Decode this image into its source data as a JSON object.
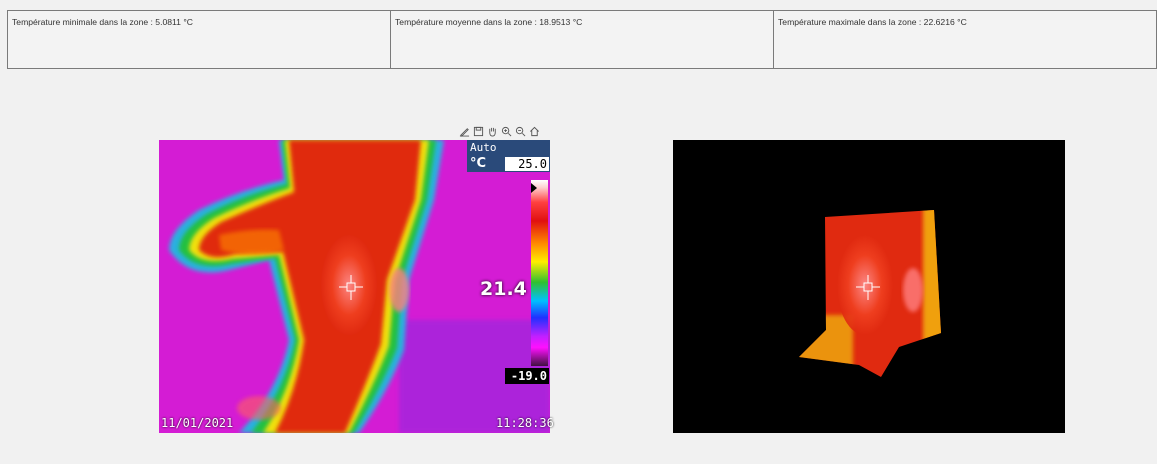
{
  "stats": {
    "min_label": "Température minimale dans la zone : 5.0811 °C",
    "mean_label": "Température moyenne dans la zone : 18.9513 °C",
    "max_label": "Température maximale dans la zone : 22.6216 °C"
  },
  "toolbar": {
    "items": [
      "annotate-icon",
      "save-icon",
      "pan-hand-icon",
      "zoom-in-icon",
      "zoom-out-icon",
      "home-icon"
    ]
  },
  "thermal": {
    "scale_mode": "Auto",
    "unit": "°C",
    "scale_max": "25.0",
    "scale_min": "-19.0",
    "spot_value": "21.4",
    "date": "11/01/2021",
    "time": "11:28:36"
  },
  "colors": {
    "background": "#f1f1f1",
    "scale_panel": "#2a4a7a",
    "cold_magenta": "#d41cd4",
    "warm_red": "#e02a10"
  }
}
